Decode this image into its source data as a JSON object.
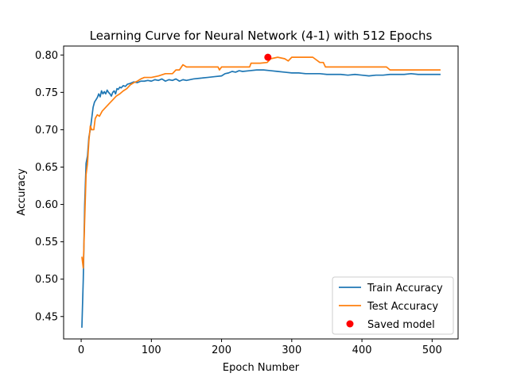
{
  "chart_data": {
    "type": "line",
    "title": "Learning Curve for Neural Network (4-1) with 512 Epochs",
    "xlabel": "Epoch Number",
    "ylabel": "Accuracy",
    "xlim": [
      -25,
      537
    ],
    "ylim": [
      0.42,
      0.812
    ],
    "xticks": [
      0,
      100,
      200,
      300,
      400,
      500
    ],
    "yticks": [
      0.45,
      0.5,
      0.55,
      0.6,
      0.65,
      0.7,
      0.75,
      0.8
    ],
    "ytick_labels": [
      "0.45",
      "0.50",
      "0.55",
      "0.60",
      "0.65",
      "0.70",
      "0.75",
      "0.80"
    ],
    "grid": false,
    "legend_position": "lower-right",
    "series": [
      {
        "name": "Train Accuracy",
        "kind": "line",
        "color": "#1f77b4",
        "points": [
          [
            1,
            0.435
          ],
          [
            3,
            0.5
          ],
          [
            5,
            0.6
          ],
          [
            7,
            0.655
          ],
          [
            9,
            0.665
          ],
          [
            11,
            0.69
          ],
          [
            13,
            0.7
          ],
          [
            15,
            0.715
          ],
          [
            17,
            0.73
          ],
          [
            19,
            0.737
          ],
          [
            21,
            0.74
          ],
          [
            23,
            0.743
          ],
          [
            25,
            0.748
          ],
          [
            27,
            0.744
          ],
          [
            29,
            0.752
          ],
          [
            31,
            0.748
          ],
          [
            33,
            0.751
          ],
          [
            35,
            0.748
          ],
          [
            37,
            0.753
          ],
          [
            39,
            0.75
          ],
          [
            41,
            0.748
          ],
          [
            43,
            0.745
          ],
          [
            45,
            0.75
          ],
          [
            47,
            0.752
          ],
          [
            49,
            0.748
          ],
          [
            51,
            0.755
          ],
          [
            53,
            0.754
          ],
          [
            55,
            0.757
          ],
          [
            57,
            0.756
          ],
          [
            60,
            0.759
          ],
          [
            63,
            0.758
          ],
          [
            66,
            0.761
          ],
          [
            70,
            0.762
          ],
          [
            75,
            0.764
          ],
          [
            80,
            0.763
          ],
          [
            85,
            0.765
          ],
          [
            90,
            0.765
          ],
          [
            95,
            0.766
          ],
          [
            100,
            0.765
          ],
          [
            105,
            0.767
          ],
          [
            110,
            0.766
          ],
          [
            115,
            0.768
          ],
          [
            120,
            0.765
          ],
          [
            125,
            0.767
          ],
          [
            130,
            0.766
          ],
          [
            135,
            0.768
          ],
          [
            140,
            0.765
          ],
          [
            145,
            0.767
          ],
          [
            150,
            0.766
          ],
          [
            160,
            0.768
          ],
          [
            170,
            0.769
          ],
          [
            180,
            0.77
          ],
          [
            190,
            0.771
          ],
          [
            200,
            0.772
          ],
          [
            205,
            0.775
          ],
          [
            210,
            0.776
          ],
          [
            215,
            0.778
          ],
          [
            220,
            0.777
          ],
          [
            225,
            0.779
          ],
          [
            230,
            0.778
          ],
          [
            240,
            0.779
          ],
          [
            250,
            0.78
          ],
          [
            260,
            0.78
          ],
          [
            270,
            0.779
          ],
          [
            280,
            0.778
          ],
          [
            290,
            0.777
          ],
          [
            300,
            0.776
          ],
          [
            310,
            0.776
          ],
          [
            320,
            0.775
          ],
          [
            330,
            0.775
          ],
          [
            340,
            0.775
          ],
          [
            350,
            0.774
          ],
          [
            360,
            0.774
          ],
          [
            370,
            0.774
          ],
          [
            380,
            0.773
          ],
          [
            390,
            0.774
          ],
          [
            400,
            0.773
          ],
          [
            410,
            0.772
          ],
          [
            420,
            0.773
          ],
          [
            430,
            0.773
          ],
          [
            440,
            0.774
          ],
          [
            450,
            0.774
          ],
          [
            460,
            0.774
          ],
          [
            470,
            0.775
          ],
          [
            480,
            0.774
          ],
          [
            490,
            0.774
          ],
          [
            500,
            0.774
          ],
          [
            512,
            0.774
          ]
        ]
      },
      {
        "name": "Test Accuracy",
        "kind": "line",
        "color": "#ff7f0e",
        "points": [
          [
            1,
            0.53
          ],
          [
            3,
            0.515
          ],
          [
            5,
            0.58
          ],
          [
            7,
            0.64
          ],
          [
            9,
            0.655
          ],
          [
            11,
            0.685
          ],
          [
            13,
            0.705
          ],
          [
            15,
            0.7
          ],
          [
            18,
            0.7
          ],
          [
            20,
            0.715
          ],
          [
            23,
            0.72
          ],
          [
            26,
            0.718
          ],
          [
            30,
            0.725
          ],
          [
            35,
            0.73
          ],
          [
            40,
            0.735
          ],
          [
            45,
            0.74
          ],
          [
            50,
            0.745
          ],
          [
            55,
            0.748
          ],
          [
            60,
            0.752
          ],
          [
            65,
            0.755
          ],
          [
            70,
            0.76
          ],
          [
            75,
            0.763
          ],
          [
            80,
            0.765
          ],
          [
            85,
            0.768
          ],
          [
            90,
            0.77
          ],
          [
            100,
            0.77
          ],
          [
            110,
            0.772
          ],
          [
            120,
            0.775
          ],
          [
            130,
            0.775
          ],
          [
            135,
            0.78
          ],
          [
            140,
            0.78
          ],
          [
            145,
            0.787
          ],
          [
            150,
            0.784
          ],
          [
            160,
            0.784
          ],
          [
            170,
            0.784
          ],
          [
            180,
            0.784
          ],
          [
            195,
            0.784
          ],
          [
            197,
            0.78
          ],
          [
            200,
            0.784
          ],
          [
            220,
            0.784
          ],
          [
            240,
            0.784
          ],
          [
            242,
            0.789
          ],
          [
            255,
            0.789
          ],
          [
            265,
            0.79
          ],
          [
            270,
            0.795
          ],
          [
            280,
            0.797
          ],
          [
            290,
            0.795
          ],
          [
            295,
            0.792
          ],
          [
            300,
            0.797
          ],
          [
            320,
            0.797
          ],
          [
            330,
            0.797
          ],
          [
            340,
            0.79
          ],
          [
            345,
            0.79
          ],
          [
            348,
            0.784
          ],
          [
            360,
            0.784
          ],
          [
            380,
            0.784
          ],
          [
            400,
            0.784
          ],
          [
            420,
            0.784
          ],
          [
            435,
            0.784
          ],
          [
            440,
            0.78
          ],
          [
            460,
            0.78
          ],
          [
            480,
            0.78
          ],
          [
            500,
            0.78
          ],
          [
            512,
            0.78
          ]
        ]
      }
    ],
    "markers": [
      {
        "name": "Saved model",
        "kind": "point",
        "color": "#ff0000",
        "x": 266,
        "y": 0.797
      }
    ]
  }
}
